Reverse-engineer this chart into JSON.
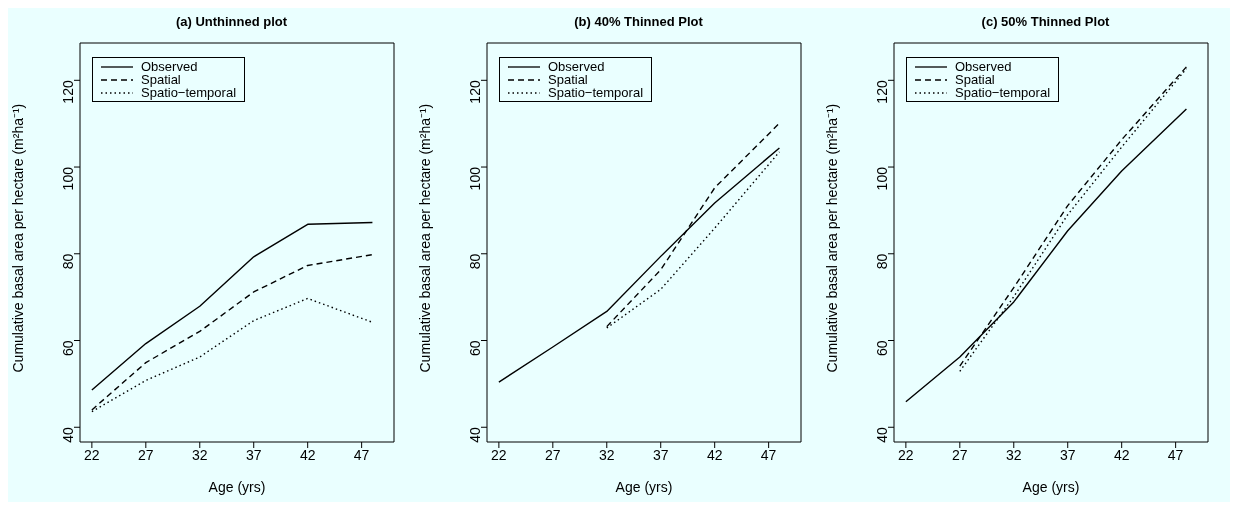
{
  "chart_data": [
    {
      "type": "line",
      "title": "(a) Unthinned plot",
      "xlabel": "Age (yrs)",
      "ylabel": "Cumulative basal area per hectare (m²ha⁻¹)",
      "x": [
        22,
        27,
        32,
        37,
        42,
        48
      ],
      "xlim": [
        20.9,
        50
      ],
      "xticks": [
        22,
        27,
        32,
        37,
        42,
        47
      ],
      "ylim": [
        36.6,
        128.6
      ],
      "yticks": [
        40,
        60,
        80,
        100,
        120
      ],
      "legend": "top left",
      "grid": false,
      "marker": "none",
      "series": [
        {
          "name": "Observed",
          "color": "#000000",
          "line_style": "solid",
          "values": [
            48.6,
            59.3,
            67.9,
            79.3,
            86.8,
            87.2
          ]
        },
        {
          "name": "Spatial",
          "color": "#000000",
          "line_style": "dashed",
          "values": [
            44.0,
            54.9,
            62.1,
            71.2,
            77.3,
            79.8
          ]
        },
        {
          "name": "Spatio−temporal",
          "color": "#000000",
          "line_style": "dotted",
          "values": [
            43.6,
            50.8,
            56.2,
            64.6,
            69.7,
            64.2
          ]
        }
      ]
    },
    {
      "type": "line",
      "title": "(b) 40% Thinned Plot",
      "xlabel": "Age (yrs)",
      "ylabel": "Cumulative basal area per hectare (m²ha⁻¹)",
      "x": [
        22,
        27,
        32,
        37,
        42,
        48
      ],
      "xlim": [
        20.9,
        50
      ],
      "xticks": [
        22,
        27,
        32,
        37,
        42,
        47
      ],
      "ylim": [
        36.6,
        128.6
      ],
      "yticks": [
        40,
        60,
        80,
        100,
        120
      ],
      "legend": "top left",
      "grid": false,
      "marker": "none",
      "series": [
        {
          "name": "Observed",
          "color": "#000000",
          "line_style": "solid",
          "values": [
            50.4,
            58.5,
            66.7,
            79.4,
            91.7,
            104.4
          ]
        },
        {
          "name": "Spatial",
          "color": "#000000",
          "line_style": "dashed",
          "values": [
            null,
            null,
            63.2,
            76.3,
            95.2,
            110.1
          ]
        },
        {
          "name": "Spatio−temporal",
          "color": "#000000",
          "line_style": "dotted",
          "values": [
            null,
            null,
            62.9,
            71.8,
            85.9,
            103.5
          ]
        }
      ]
    },
    {
      "type": "line",
      "title": "(c) 50% Thinned Plot",
      "xlabel": "Age (yrs)",
      "ylabel": "Cumulative basal area per hectare (m²ha⁻¹)",
      "x": [
        22,
        27,
        32,
        37,
        42,
        48
      ],
      "xlim": [
        20.9,
        50
      ],
      "xticks": [
        22,
        27,
        32,
        37,
        42,
        47
      ],
      "ylim": [
        36.6,
        128.6
      ],
      "yticks": [
        40,
        60,
        80,
        100,
        120
      ],
      "legend": "top left",
      "grid": false,
      "marker": "none",
      "series": [
        {
          "name": "Observed",
          "color": "#000000",
          "line_style": "solid",
          "values": [
            45.9,
            56.2,
            68.9,
            85.3,
            99.1,
            113.4
          ]
        },
        {
          "name": "Spatial",
          "color": "#000000",
          "line_style": "dashed",
          "values": [
            null,
            54.1,
            72.2,
            91.1,
            106.3,
            123.1
          ]
        },
        {
          "name": "Spatio−temporal",
          "color": "#000000",
          "line_style": "dotted",
          "values": [
            null,
            52.9,
            70.1,
            89.0,
            104.6,
            122.7
          ]
        }
      ]
    }
  ]
}
